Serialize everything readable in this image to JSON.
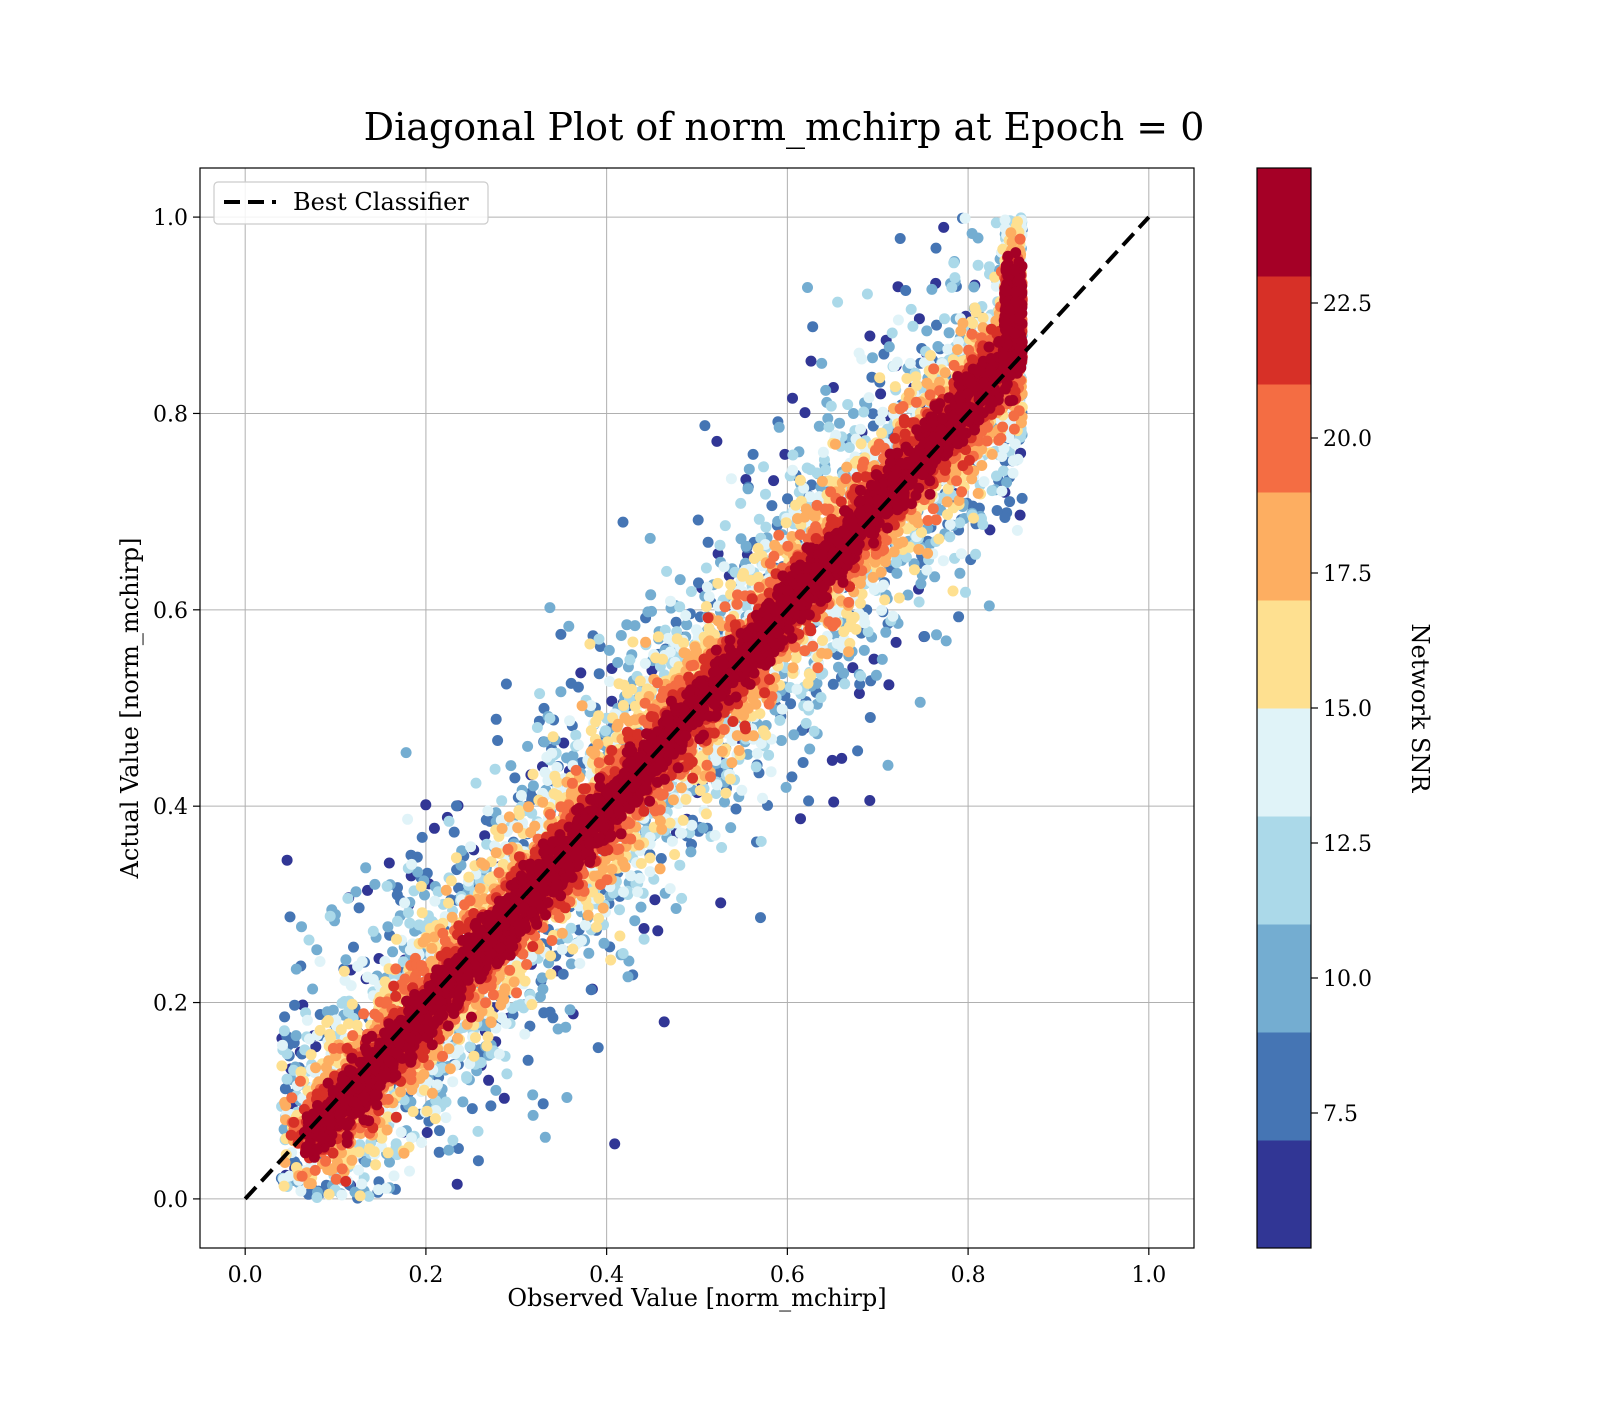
{
  "chart_data": {
    "type": "scatter",
    "title": "Diagonal Plot of norm_mchirp at Epoch = 0",
    "xlabel": "Observed Value [norm_mchirp]",
    "ylabel": "Actual Value [norm_mchirp]",
    "xlim": [
      -0.05,
      1.05
    ],
    "ylim": [
      -0.05,
      1.05
    ],
    "x_ticks": [
      "0.0",
      "0.2",
      "0.4",
      "0.6",
      "0.8",
      "1.0"
    ],
    "y_ticks": [
      "0.0",
      "0.2",
      "0.4",
      "0.6",
      "0.8",
      "1.0"
    ],
    "grid": true,
    "legend": {
      "position": "top-left",
      "entries": [
        "Best Classifier"
      ]
    },
    "reference_line": {
      "name": "Best Classifier",
      "x": [
        0.0,
        1.0
      ],
      "y": [
        0.0,
        1.0
      ],
      "style": "dashed",
      "color": "#000000"
    },
    "points": {
      "description_free": true,
      "count": 14000,
      "x_range": [
        0.04,
        0.86
      ],
      "y_range": [
        0.0,
        1.0
      ],
      "colored_by": "Network SNR",
      "trend": "clustered along y = x; low-SNR points scattered farther from diagonal"
    },
    "colorbar": {
      "label": "Network SNR",
      "range": [
        5.0,
        25.0
      ],
      "tick_values": [
        7.5,
        10.0,
        12.5,
        15.0,
        17.5,
        20.0,
        22.5
      ],
      "tick_labels": [
        "7.5",
        "10.0",
        "12.5",
        "15.0",
        "17.5",
        "20.0",
        "22.5"
      ],
      "colors": [
        "#313695",
        "#4575b4",
        "#74add1",
        "#abd9e9",
        "#e0f3f8",
        "#fee090",
        "#fdae61",
        "#f46d43",
        "#d73027",
        "#a50026"
      ]
    }
  }
}
